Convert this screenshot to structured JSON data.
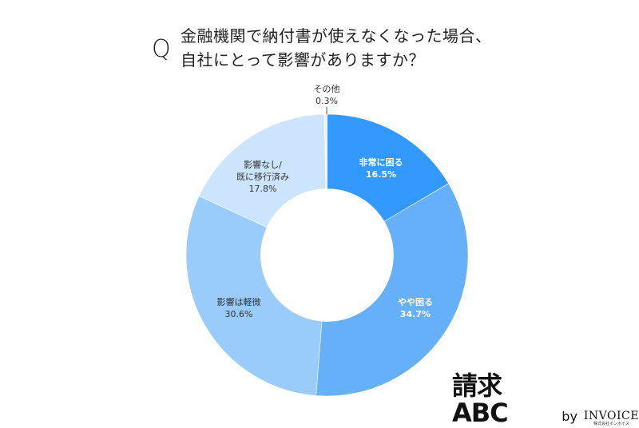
{
  "header": {
    "q_mark": "Q",
    "title_line1": "金融機関で納付書が使えなくなった場合、",
    "title_line2": "自社にとって影響がありますか？"
  },
  "labels": {
    "very": {
      "name": "非常に困る",
      "pct": "16.5%"
    },
    "somewhat": {
      "name": "やや困る",
      "pct": "34.7%"
    },
    "minor": {
      "name": "影響は軽微",
      "pct": "30.6%"
    },
    "none_line1": "影響なし/",
    "none_line2": "既に移行済み",
    "none_pct": "17.8%",
    "other": {
      "name": "その他",
      "pct": "0.3%"
    }
  },
  "logo": {
    "main": "請求ABC",
    "by": "by",
    "brand": "INVOICE",
    "sub": "株式会社インボイス"
  },
  "chart_data": {
    "type": "pie",
    "donut": true,
    "title": "金融機関で納付書が使えなくなった場合、自社にとって影響がありますか？",
    "categories": [
      "非常に困る",
      "やや困る",
      "影響は軽微",
      "影響なし/既に移行済み",
      "その他"
    ],
    "values": [
      16.5,
      34.7,
      30.6,
      17.8,
      0.3
    ],
    "unit": "%",
    "colors": [
      "#3399FF",
      "#66B0FA",
      "#99CBFB",
      "#CCE4FC",
      "#E8F2FD"
    ],
    "start_angle": "12 o'clock, clockwise"
  }
}
